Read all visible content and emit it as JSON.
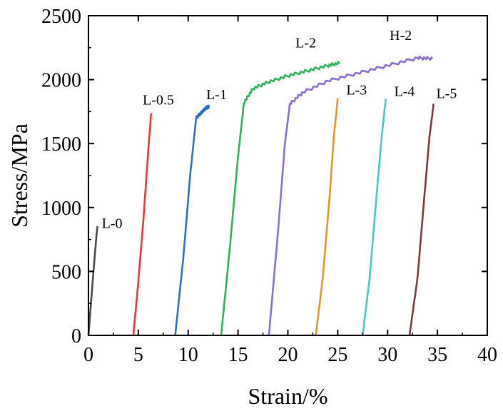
{
  "chart_data": {
    "type": "line",
    "title": "",
    "xlabel": "Strain/%",
    "ylabel": "Stress/MPa",
    "xlim": [
      0,
      40
    ],
    "ylim": [
      0,
      2500
    ],
    "xticks": [
      0,
      5,
      10,
      15,
      20,
      25,
      30,
      35,
      40
    ],
    "yticks": [
      0,
      500,
      1000,
      1500,
      2000,
      2500
    ],
    "grid": false,
    "legend": "none",
    "series": [
      {
        "name": "L-0",
        "color": "#4a4a4a",
        "x": [
          0.0,
          0.5,
          0.8,
          0.9
        ],
        "y": [
          0,
          500,
          780,
          850
        ]
      },
      {
        "name": "L-0.5",
        "color": "#e8383b",
        "x": [
          4.5,
          5.0,
          5.5,
          6.0,
          6.3
        ],
        "y": [
          0,
          420,
          900,
          1450,
          1750
        ]
      },
      {
        "name": "L-1",
        "color": "#2f6fc6",
        "x": [
          8.7,
          9.5,
          10.2,
          10.8,
          11.3,
          11.8,
          12.1
        ],
        "y": [
          0,
          600,
          1250,
          1700,
          1740,
          1780,
          1790
        ]
      },
      {
        "name": "L-2",
        "color": "#2fb25a",
        "x": [
          13.3,
          14.2,
          15.0,
          15.6,
          16.5,
          18.0,
          20.0,
          22.0,
          24.0,
          25.2
        ],
        "y": [
          0,
          700,
          1400,
          1820,
          1930,
          1980,
          2030,
          2070,
          2110,
          2130
        ]
      },
      {
        "name": "H-2",
        "color": "#8a6ed0",
        "x": [
          18.1,
          19.0,
          19.7,
          20.2,
          21.5,
          24.0,
          27.0,
          30.0,
          33.0,
          34.5
        ],
        "y": [
          0,
          800,
          1500,
          1810,
          1900,
          1990,
          2050,
          2110,
          2170,
          2165
        ]
      },
      {
        "name": "L-3",
        "color": "#e0972a",
        "x": [
          22.8,
          23.5,
          24.2,
          24.6,
          25.0
        ],
        "y": [
          0,
          450,
          1100,
          1550,
          1850
        ]
      },
      {
        "name": "L-4",
        "color": "#4cc7c0",
        "x": [
          27.5,
          28.2,
          28.9,
          29.4,
          29.8
        ],
        "y": [
          0,
          450,
          1100,
          1550,
          1840
        ]
      },
      {
        "name": "L-5",
        "color": "#7a3b3b",
        "x": [
          32.2,
          33.0,
          33.7,
          34.2,
          34.6
        ],
        "y": [
          0,
          450,
          1100,
          1550,
          1800
        ]
      }
    ],
    "annotations": [
      {
        "text": "L-0",
        "series": "L-0"
      },
      {
        "text": "L-0.5",
        "series": "L-0.5"
      },
      {
        "text": "L-1",
        "series": "L-1"
      },
      {
        "text": "L-2",
        "series": "L-2"
      },
      {
        "text": "H-2",
        "series": "H-2"
      },
      {
        "text": "L-3",
        "series": "L-3"
      },
      {
        "text": "L-4",
        "series": "L-4"
      },
      {
        "text": "L-5",
        "series": "L-5"
      }
    ]
  }
}
